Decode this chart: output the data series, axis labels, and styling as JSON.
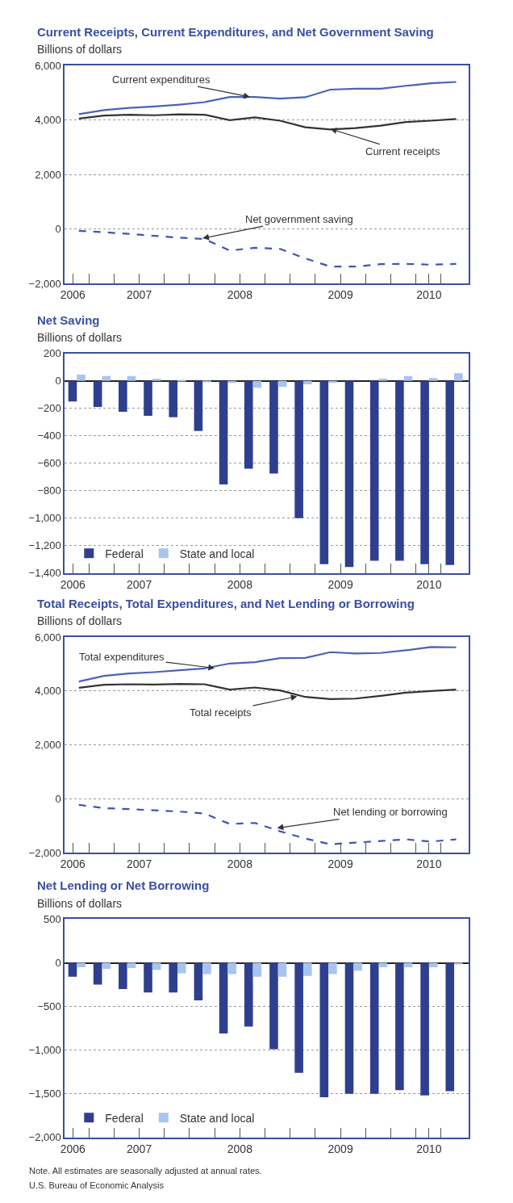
{
  "chart_data": [
    {
      "type": "line",
      "title": "Current Receipts, Current Expenditures, and Net Government Saving",
      "ylabel": "Billions of dollars",
      "x": [
        2006.25,
        2006.5,
        2006.75,
        2007,
        2007.25,
        2007.5,
        2007.75,
        2008,
        2008.25,
        2008.5,
        2008.75,
        2009,
        2009.25,
        2009.5,
        2009.75,
        2010
      ],
      "series": [
        {
          "color": "#4a63b8",
          "line_style": "solid",
          "values": [
            4220,
            4370,
            4450,
            4500,
            4570,
            4660,
            4850,
            4850,
            4790,
            4840,
            5120,
            5150,
            5150,
            5260,
            5350,
            5400
          ]
        },
        {
          "color": "#333333",
          "line_style": "solid",
          "values": [
            4060,
            4170,
            4200,
            4180,
            4210,
            4200,
            4000,
            4100,
            3980,
            3740,
            3660,
            3710,
            3800,
            3930,
            3980,
            4040
          ]
        },
        {
          "color": "#3f55b0",
          "line_style": "dashed",
          "values": [
            -60,
            -110,
            -170,
            -240,
            -310,
            -360,
            -780,
            -680,
            -720,
            -1070,
            -1370,
            -1370,
            -1280,
            -1270,
            -1300,
            -1270
          ]
        }
      ],
      "xlim": [
        2006.11,
        2010.12
      ],
      "xticks": [
        {
          "value": 2006.19,
          "label": "2006"
        },
        {
          "value": 2006.35,
          "label": null
        },
        {
          "value": 2006.6,
          "label": null
        },
        {
          "value": 2006.85,
          "label": "2007"
        },
        {
          "value": 2007.1,
          "label": null
        },
        {
          "value": 2007.35,
          "label": null
        },
        {
          "value": 2007.6,
          "label": null
        },
        {
          "value": 2007.85,
          "label": "2008"
        },
        {
          "value": 2008.1,
          "label": null
        },
        {
          "value": 2008.35,
          "label": null
        },
        {
          "value": 2008.6,
          "label": null
        },
        {
          "value": 2008.85,
          "label": "2009"
        },
        {
          "value": 2009.1,
          "label": null
        },
        {
          "value": 2009.35,
          "label": null
        },
        {
          "value": 2009.6,
          "label": null
        },
        {
          "value": 2009.73,
          "label": "2010"
        },
        {
          "value": 2009.85,
          "label": null
        }
      ],
      "ylim": [
        -2000,
        6000
      ],
      "yticks": [
        {
          "value": -2000,
          "label": "−2,000"
        },
        {
          "value": 0,
          "label": "0"
        },
        {
          "value": 2000,
          "label": "2,000"
        },
        {
          "value": 4000,
          "label": "4,000"
        },
        {
          "value": 6000,
          "label": "6,000"
        }
      ],
      "grid": "y",
      "annotations": [
        {
          "text": "Current expenditures",
          "x": 2007.95,
          "y": 4850
        },
        {
          "text": "Current receipts",
          "x": 2008.75,
          "y": 3680
        },
        {
          "text": "Net government saving",
          "x": 2007.48,
          "y": -330
        }
      ]
    },
    {
      "type": "bar",
      "title": "Net Saving",
      "ylabel": "Billions of dollars",
      "x": [
        2006.25,
        2006.5,
        2006.75,
        2007,
        2007.25,
        2007.5,
        2007.75,
        2008,
        2008.25,
        2008.5,
        2008.75,
        2009,
        2009.25,
        2009.5,
        2009.75,
        2010
      ],
      "series": [
        {
          "name": "Federal",
          "color": "#2e3f8f",
          "values": [
            -150,
            -190,
            -225,
            -255,
            -265,
            -365,
            -755,
            -640,
            -675,
            -1000,
            -1335,
            -1355,
            -1310,
            -1310,
            -1335,
            -1340
          ]
        },
        {
          "name": "State and local",
          "color": "#a8c4ee",
          "values": [
            45,
            35,
            35,
            15,
            5,
            -10,
            -15,
            -50,
            -45,
            -25,
            -15,
            null,
            15,
            35,
            20,
            55
          ]
        }
      ],
      "xlim": [
        2006.11,
        2010.12
      ],
      "xticks": [
        {
          "value": 2006.19,
          "label": "2006"
        },
        {
          "value": 2006.35,
          "label": null
        },
        {
          "value": 2006.6,
          "label": null
        },
        {
          "value": 2006.85,
          "label": "2007"
        },
        {
          "value": 2007.1,
          "label": null
        },
        {
          "value": 2007.35,
          "label": null
        },
        {
          "value": 2007.6,
          "label": null
        },
        {
          "value": 2007.85,
          "label": "2008"
        },
        {
          "value": 2008.1,
          "label": null
        },
        {
          "value": 2008.35,
          "label": null
        },
        {
          "value": 2008.6,
          "label": null
        },
        {
          "value": 2008.85,
          "label": "2009"
        },
        {
          "value": 2009.1,
          "label": null
        },
        {
          "value": 2009.35,
          "label": null
        },
        {
          "value": 2009.6,
          "label": null
        },
        {
          "value": 2009.73,
          "label": "2010"
        },
        {
          "value": 2009.85,
          "label": null
        }
      ],
      "ylim": [
        -1400,
        200
      ],
      "yticks": [
        {
          "value": -1400,
          "label": "−1,400"
        },
        {
          "value": -1200,
          "label": "−1,200"
        },
        {
          "value": -1000,
          "label": "−1,000"
        },
        {
          "value": -800,
          "label": "−800"
        },
        {
          "value": -600,
          "label": "−600"
        },
        {
          "value": -400,
          "label": "−400"
        },
        {
          "value": -200,
          "label": "−200"
        },
        {
          "value": 0,
          "label": "0"
        },
        {
          "value": 200,
          "label": "200"
        }
      ],
      "grid": "y",
      "legend": "bottom left"
    },
    {
      "type": "line",
      "title": "Total Receipts, Total Expenditures, and Net Lending or Borrowing",
      "ylabel": "Billions of dollars",
      "x": [
        2006.25,
        2006.5,
        2006.75,
        2007,
        2007.25,
        2007.5,
        2007.75,
        2008,
        2008.25,
        2008.5,
        2008.75,
        2009,
        2009.25,
        2009.5,
        2009.75,
        2010
      ],
      "series": [
        {
          "color": "#4a63b8",
          "line_style": "solid",
          "values": [
            4350,
            4560,
            4650,
            4700,
            4770,
            4840,
            5020,
            5070,
            5220,
            5230,
            5440,
            5390,
            5410,
            5510,
            5630,
            5620
          ]
        },
        {
          "color": "#333333",
          "line_style": "solid",
          "values": [
            4120,
            4230,
            4250,
            4240,
            4260,
            4250,
            4050,
            4130,
            4020,
            3780,
            3700,
            3720,
            3820,
            3940,
            4000,
            4050
          ]
        },
        {
          "color": "#3f55b0",
          "line_style": "dashed",
          "values": [
            -220,
            -340,
            -380,
            -420,
            -470,
            -540,
            -930,
            -890,
            -1200,
            -1470,
            -1680,
            -1620,
            -1560,
            -1500,
            -1580,
            -1500
          ]
        }
      ],
      "xlim": [
        2006.11,
        2010.12
      ],
      "xticks": [
        {
          "value": 2006.19,
          "label": "2006"
        },
        {
          "value": 2006.35,
          "label": null
        },
        {
          "value": 2006.6,
          "label": null
        },
        {
          "value": 2006.85,
          "label": "2007"
        },
        {
          "value": 2007.1,
          "label": null
        },
        {
          "value": 2007.35,
          "label": null
        },
        {
          "value": 2007.6,
          "label": null
        },
        {
          "value": 2007.85,
          "label": "2008"
        },
        {
          "value": 2008.1,
          "label": null
        },
        {
          "value": 2008.35,
          "label": null
        },
        {
          "value": 2008.6,
          "label": null
        },
        {
          "value": 2008.85,
          "label": "2009"
        },
        {
          "value": 2009.1,
          "label": null
        },
        {
          "value": 2009.35,
          "label": null
        },
        {
          "value": 2009.6,
          "label": null
        },
        {
          "value": 2009.73,
          "label": "2010"
        },
        {
          "value": 2009.85,
          "label": null
        }
      ],
      "ylim": [
        -2000,
        6000
      ],
      "yticks": [
        {
          "value": -2000,
          "label": "−2,000"
        },
        {
          "value": 0,
          "label": "0"
        },
        {
          "value": 2000,
          "label": "2,000"
        },
        {
          "value": 4000,
          "label": "4,000"
        },
        {
          "value": 6000,
          "label": "6,000"
        }
      ],
      "grid": "y",
      "annotations": [
        {
          "text": "Total expenditures",
          "x": 2007.6,
          "y": 4850
        },
        {
          "text": "Total receipts",
          "x": 2008.42,
          "y": 3800
        },
        {
          "text": "Net lending or borrowing",
          "x": 2008.22,
          "y": -1080
        }
      ]
    },
    {
      "type": "bar",
      "title": "Net Lending or Net Borrowing",
      "ylabel": "Billions of dollars",
      "x": [
        2006.25,
        2006.5,
        2006.75,
        2007,
        2007.25,
        2007.5,
        2007.75,
        2008,
        2008.25,
        2008.5,
        2008.75,
        2009,
        2009.25,
        2009.5,
        2009.75,
        2010
      ],
      "series": [
        {
          "name": "Federal",
          "color": "#2e3f8f",
          "values": [
            -160,
            -250,
            -300,
            -340,
            -340,
            -430,
            -810,
            -730,
            -990,
            -1260,
            -1540,
            -1500,
            -1500,
            -1460,
            -1520,
            -1470
          ]
        },
        {
          "name": "State and local",
          "color": "#a8c4ee",
          "values": [
            -50,
            -70,
            -60,
            -80,
            -120,
            -130,
            -130,
            -160,
            -160,
            -150,
            -130,
            -90,
            -50,
            -50,
            -50,
            -10
          ]
        }
      ],
      "xlim": [
        2006.11,
        2010.12
      ],
      "xticks": [
        {
          "value": 2006.19,
          "label": "2006"
        },
        {
          "value": 2006.35,
          "label": null
        },
        {
          "value": 2006.6,
          "label": null
        },
        {
          "value": 2006.85,
          "label": "2007"
        },
        {
          "value": 2007.1,
          "label": null
        },
        {
          "value": 2007.35,
          "label": null
        },
        {
          "value": 2007.6,
          "label": null
        },
        {
          "value": 2007.85,
          "label": "2008"
        },
        {
          "value": 2008.1,
          "label": null
        },
        {
          "value": 2008.35,
          "label": null
        },
        {
          "value": 2008.6,
          "label": null
        },
        {
          "value": 2008.85,
          "label": "2009"
        },
        {
          "value": 2009.1,
          "label": null
        },
        {
          "value": 2009.35,
          "label": null
        },
        {
          "value": 2009.6,
          "label": null
        },
        {
          "value": 2009.73,
          "label": "2010"
        },
        {
          "value": 2009.85,
          "label": null
        }
      ],
      "ylim": [
        -2000,
        500
      ],
      "yticks": [
        {
          "value": -2000,
          "label": "−2,000"
        },
        {
          "value": -1500,
          "label": "−1,500"
        },
        {
          "value": -1000,
          "label": "−1,000"
        },
        {
          "value": -500,
          "label": "−500"
        },
        {
          "value": 0,
          "label": "0"
        },
        {
          "value": 500,
          "label": "500"
        }
      ],
      "grid": "y",
      "legend": "bottom left",
      "annotations": [
        "Note. All estimates are seasonally adjusted at annual rates.",
        "U.S. Bureau of Economic Analysis"
      ]
    }
  ]
}
